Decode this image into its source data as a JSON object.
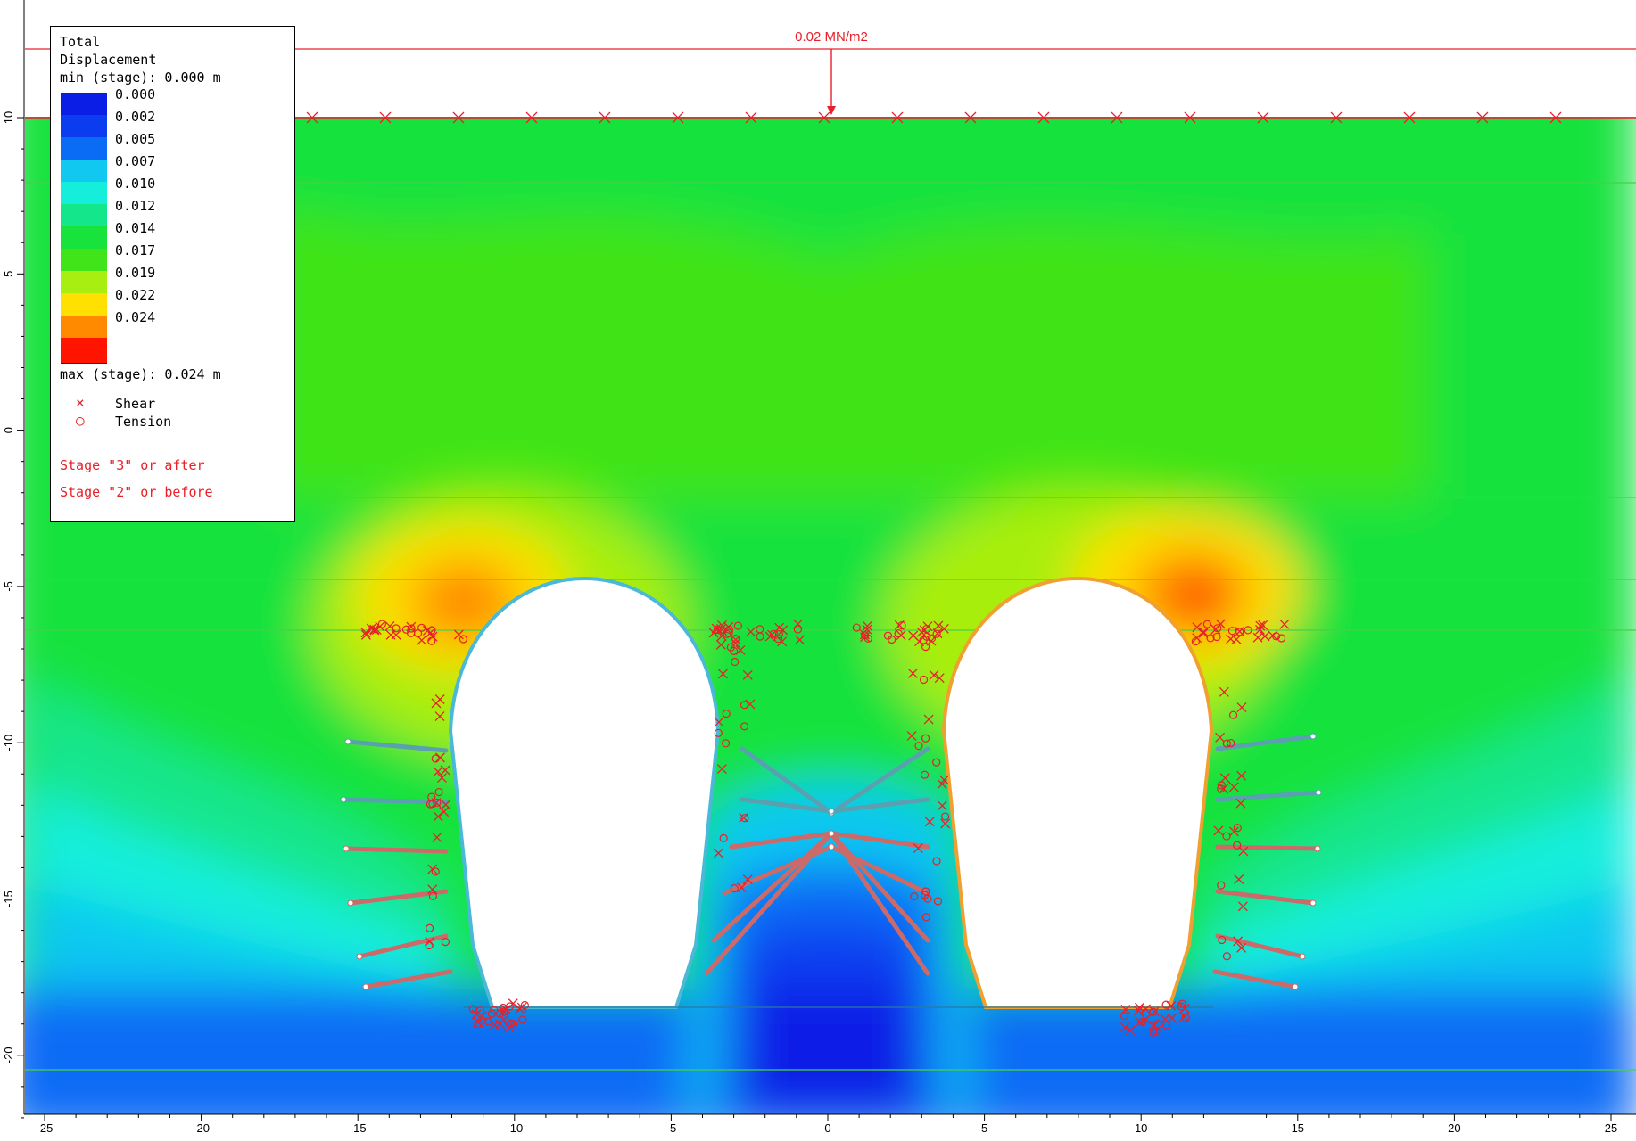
{
  "load_label": "0.02 MN/m2",
  "legend": {
    "title_line1": "Total",
    "title_line2": "Displacement",
    "min_text": "min (stage): 0.000 m",
    "max_text": "max (stage): 0.024 m",
    "levels": [
      {
        "label": "0.000",
        "color": "#0a1ee6"
      },
      {
        "label": "0.002",
        "color": "#0c3cf0"
      },
      {
        "label": "0.005",
        "color": "#0a6cf5"
      },
      {
        "label": "0.007",
        "color": "#10c8f0"
      },
      {
        "label": "0.010",
        "color": "#16eedc"
      },
      {
        "label": "0.012",
        "color": "#14e68c"
      },
      {
        "label": "0.014",
        "color": "#18e23c"
      },
      {
        "label": "0.017",
        "color": "#40e418"
      },
      {
        "label": "0.019",
        "color": "#a8ee10"
      },
      {
        "label": "0.022",
        "color": "#ffe000"
      },
      {
        "label": "0.024",
        "color": "#ff8a00"
      },
      {
        "label": "",
        "color": "#ff1400"
      }
    ],
    "shear_label": "Shear",
    "tension_label": "Tension",
    "stage_after": "Stage \"3\" or after",
    "stage_before": "Stage \"2\" or before"
  },
  "axes": {
    "x_ticks": [
      "-25",
      "-20",
      "-15",
      "-10",
      "-5",
      "0",
      "5",
      "10",
      "15",
      "20",
      "25"
    ],
    "y_ticks": [
      "10",
      "5",
      "0",
      "-5",
      "-10",
      "-15",
      "-20"
    ]
  },
  "colors": {
    "load": "#e8202a",
    "marker": "#e8202a",
    "liner_left": "#4ab8d8",
    "liner_right": "#f0a030",
    "bolt": "#cc6a6a",
    "bolt_upper": "#5aa0b0"
  }
}
